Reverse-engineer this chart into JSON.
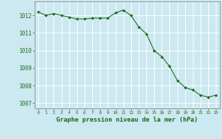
{
  "x": [
    0,
    1,
    2,
    3,
    4,
    5,
    6,
    7,
    8,
    9,
    10,
    11,
    12,
    13,
    14,
    15,
    16,
    17,
    18,
    19,
    20,
    21,
    22,
    23
  ],
  "y": [
    1012.2,
    1012.0,
    1012.1,
    1012.0,
    1011.9,
    1011.8,
    1011.8,
    1011.85,
    1011.85,
    1011.85,
    1012.15,
    1012.3,
    1012.0,
    1011.35,
    1010.95,
    1010.0,
    1009.65,
    1009.1,
    1008.3,
    1007.9,
    1007.75,
    1007.45,
    1007.35,
    1007.45
  ],
  "bg_color": "#cce8f0",
  "plot_bg_color": "#cce8f0",
  "line_color": "#1a6b1a",
  "marker_color": "#1a6b1a",
  "grid_color": "#ffffff",
  "xlabel": "Graphe pression niveau de la mer (hPa)",
  "xlabel_color": "#1a6b1a",
  "tick_color": "#1a6b1a",
  "spine_color": "#888888",
  "ylim": [
    1006.7,
    1012.8
  ],
  "yticks": [
    1007,
    1008,
    1009,
    1010,
    1011,
    1012
  ],
  "xlim": [
    -0.5,
    23.5
  ],
  "xticks": [
    0,
    1,
    2,
    3,
    4,
    5,
    6,
    7,
    8,
    9,
    10,
    11,
    12,
    13,
    14,
    15,
    16,
    17,
    18,
    19,
    20,
    21,
    22,
    23
  ]
}
